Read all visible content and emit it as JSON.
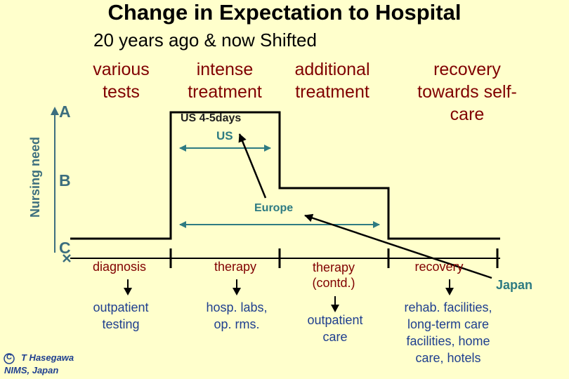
{
  "title": "Change in Expectation to Hospital",
  "subtitle": "20 years ago & now Shifted",
  "phases": {
    "various_tests": [
      "various",
      "tests"
    ],
    "intense_treatment": [
      "intense",
      "treatment"
    ],
    "additional_treatment": [
      "additional",
      "treatment"
    ],
    "recovery_self_care": [
      "recovery",
      "towards self-",
      "care"
    ]
  },
  "y_axis_label": "Nursing need",
  "levels": {
    "a": "A",
    "b": "B",
    "c": "C"
  },
  "stay_labels": {
    "us_days": "US 4-5days",
    "us": "US",
    "europe": "Europe",
    "japan": "Japan"
  },
  "stages": [
    {
      "label": "diagnosis",
      "destination": [
        "outpatient",
        "testing"
      ]
    },
    {
      "label": "therapy",
      "destination": [
        "hosp. labs,",
        "op. rms."
      ]
    },
    {
      "label": "therapy\n(contd.)",
      "destination": [
        "outpatient",
        "care"
      ]
    },
    {
      "label": "recovery",
      "destination": [
        "rehab. facilities,",
        "long-term care",
        "facilities, home",
        "care, hotels"
      ]
    }
  ],
  "copyright": {
    "symbol": "C",
    "line1": "T Hasegawa",
    "line2": "NIMS, Japan"
  },
  "colors": {
    "background": "#FFFFCC",
    "phase_text": "#800000",
    "axis_text": "#3C6E7E",
    "stay_arrows": "#2E7B82",
    "destination_text": "#1F3F8F"
  }
}
